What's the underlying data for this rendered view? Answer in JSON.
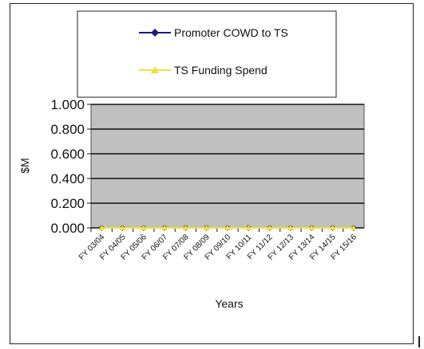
{
  "chart_data": {
    "type": "line",
    "title": "",
    "xlabel": "Years",
    "ylabel": "$M",
    "ylim": [
      0,
      1
    ],
    "ytick_labels": [
      "0.000",
      "0.200",
      "0.400",
      "0.600",
      "0.800",
      "1.000"
    ],
    "ytick_values": [
      0,
      0.2,
      0.4,
      0.6,
      0.8,
      1.0
    ],
    "categories": [
      "FY 03/04",
      "FY 04/05",
      "FY 05/06",
      "FY 06/07",
      "FY 07/08",
      "FY 08/09",
      "FY 09/10",
      "FY 10/11",
      "FY 11/12",
      "FY 12/13",
      "FY 13/14",
      "FY 14/15",
      "FY 15/16"
    ],
    "series": [
      {
        "name": "Promoter COWD to TS",
        "values": [
          0,
          0,
          0,
          0,
          0,
          0,
          0,
          0,
          0,
          0,
          0,
          0,
          0
        ],
        "color": "#1a1a7a",
        "marker": "diamond"
      },
      {
        "name": "TS Funding Spend",
        "values": [
          0,
          0,
          0,
          0,
          0,
          0,
          0,
          0,
          0,
          0,
          0,
          0,
          0
        ],
        "color": "#f0e040",
        "marker": "triangle"
      }
    ],
    "grid": true,
    "plot_background": "#c0c0c0",
    "legend_position": "top"
  }
}
